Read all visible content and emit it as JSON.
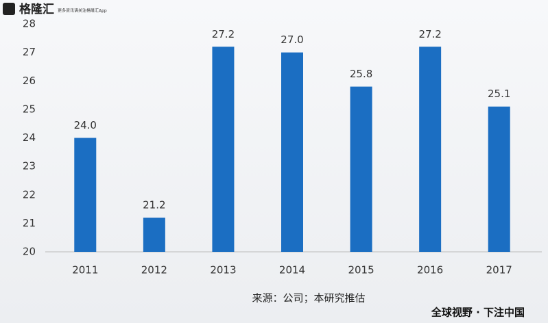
{
  "chart_data": {
    "type": "bar",
    "logo": "格隆汇",
    "logo_tagline": "更多资讯请关注格隆汇App",
    "categories": [
      "2011",
      "2012",
      "2013",
      "2014",
      "2015",
      "2016",
      "2017"
    ],
    "values": [
      24.0,
      21.2,
      27.2,
      27.0,
      25.8,
      27.2,
      25.1
    ],
    "value_labels": [
      "24.0",
      "21.2",
      "27.2",
      "27.0",
      "25.8",
      "27.2",
      "25.1"
    ],
    "color": "#1b6ec2",
    "ylim": [
      20,
      28
    ],
    "yticks": [
      20,
      21,
      22,
      23,
      24,
      25,
      26,
      27,
      28
    ],
    "source": "来源：公司；本研究推估",
    "slogan": "全球视野 · 下注中国"
  }
}
